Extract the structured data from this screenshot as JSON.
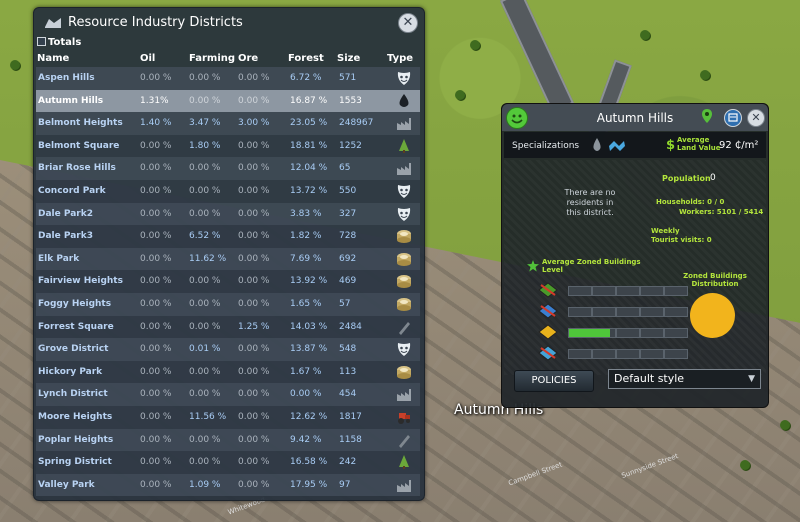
{
  "panel": {
    "title": "Resource Industry Districts",
    "totals_label": "Totals",
    "columns": [
      "Name",
      "Oil",
      "Farming",
      "Ore",
      "Forest",
      "Size",
      "Type"
    ],
    "rows": [
      {
        "name": "Aspen Hills",
        "oil": "0.00 %",
        "farming": "0.00 %",
        "ore": "0.00 %",
        "forest": "6.72 %",
        "size": "571",
        "type": "leisure-mask-icon",
        "hl": []
      },
      {
        "name": "Autumn Hills",
        "oil": "1.31%",
        "farming": "0.00 %",
        "ore": "0.00 %",
        "forest": "16.87 %",
        "size": "1553",
        "type": "oil-drop-icon",
        "hl": [
          "oil"
        ],
        "selected": true
      },
      {
        "name": "Belmont Heights",
        "oil": "1.40 %",
        "farming": "3.47 %",
        "ore": "3.00 %",
        "forest": "23.05 %",
        "size": "248967",
        "type": "industry-factory-icon",
        "hl": [
          "oil",
          "farming",
          "ore"
        ]
      },
      {
        "name": "Belmont Square",
        "oil": "0.00 %",
        "farming": "1.80 %",
        "ore": "0.00 %",
        "forest": "18.81 %",
        "size": "1252",
        "type": "forest-tree-icon",
        "hl": [
          "farming"
        ]
      },
      {
        "name": "Briar Rose Hills",
        "oil": "0.00 %",
        "farming": "0.00 %",
        "ore": "0.00 %",
        "forest": "12.04 %",
        "size": "65",
        "type": "industry-factory-icon",
        "hl": []
      },
      {
        "name": "Concord Park",
        "oil": "0.00 %",
        "farming": "0.00 %",
        "ore": "0.00 %",
        "forest": "13.72 %",
        "size": "550",
        "type": "leisure-mask-icon",
        "hl": []
      },
      {
        "name": "Dale Park2",
        "oil": "0.00 %",
        "farming": "0.00 %",
        "ore": "0.00 %",
        "forest": "3.83 %",
        "size": "327",
        "type": "leisure-mask-icon",
        "hl": []
      },
      {
        "name": "Dale Park3",
        "oil": "0.00 %",
        "farming": "6.52 %",
        "ore": "0.00 %",
        "forest": "1.82 %",
        "size": "728",
        "type": "hightech-chip-icon",
        "hl": [
          "farming"
        ]
      },
      {
        "name": "Elk Park",
        "oil": "0.00 %",
        "farming": "11.62 %",
        "ore": "0.00 %",
        "forest": "7.69 %",
        "size": "692",
        "type": "hightech-chip-icon",
        "hl": [
          "farming"
        ]
      },
      {
        "name": "Fairview Heights",
        "oil": "0.00 %",
        "farming": "0.00 %",
        "ore": "0.00 %",
        "forest": "13.92 %",
        "size": "469",
        "type": "hightech-chip-icon",
        "hl": []
      },
      {
        "name": "Foggy Heights",
        "oil": "0.00 %",
        "farming": "0.00 %",
        "ore": "0.00 %",
        "forest": "1.65 %",
        "size": "57",
        "type": "hightech-chip-icon",
        "hl": []
      },
      {
        "name": "Forrest Square",
        "oil": "0.00 %",
        "farming": "0.00 %",
        "ore": "1.25 %",
        "forest": "14.03 %",
        "size": "2484",
        "type": "office-pen-icon",
        "hl": [
          "ore"
        ]
      },
      {
        "name": "Grove District",
        "oil": "0.00 %",
        "farming": "0.01 %",
        "ore": "0.00 %",
        "forest": "13.87 %",
        "size": "548",
        "type": "leisure-mask-icon",
        "hl": [
          "farming"
        ]
      },
      {
        "name": "Hickory Park",
        "oil": "0.00 %",
        "farming": "0.00 %",
        "ore": "0.00 %",
        "forest": "1.67 %",
        "size": "113",
        "type": "hightech-chip-icon",
        "hl": []
      },
      {
        "name": "Lynch District",
        "oil": "0.00 %",
        "farming": "0.00 %",
        "ore": "0.00 %",
        "forest": "0.00 %",
        "size": "454",
        "type": "industry-factory-icon",
        "hl": []
      },
      {
        "name": "Moore Heights",
        "oil": "0.00 %",
        "farming": "11.56 %",
        "ore": "0.00 %",
        "forest": "12.62 %",
        "size": "1817",
        "type": "farming-tractor-icon",
        "hl": [
          "farming"
        ]
      },
      {
        "name": "Poplar Heights",
        "oil": "0.00 %",
        "farming": "0.00 %",
        "ore": "0.00 %",
        "forest": "9.42 %",
        "size": "1158",
        "type": "office-pen-icon",
        "hl": []
      },
      {
        "name": "Spring District",
        "oil": "0.00 %",
        "farming": "0.00 %",
        "ore": "0.00 %",
        "forest": "16.58 %",
        "size": "242",
        "type": "forest-tree-icon",
        "hl": []
      },
      {
        "name": "Valley Park",
        "oil": "0.00 %",
        "farming": "1.09 %",
        "ore": "0.00 %",
        "forest": "17.95 %",
        "size": "97",
        "type": "industry-factory-icon",
        "hl": [
          "farming"
        ]
      }
    ]
  },
  "info": {
    "title": "Autumn Hills",
    "specializations_label": "Specializations",
    "land_value_label_1": "Average",
    "land_value_label_2": "Land Value",
    "land_value": "92 ₵/m²",
    "no_residents": "There are no residents in this district.",
    "population_label": "Population",
    "population_value": "0",
    "households_label": "Households: 0 / 0",
    "workers_label": "Workers: 5101 / 5414",
    "weekly_label": "Weekly",
    "tourist_label": "Tourist visits: 0",
    "avg_level_label": "Average Zoned Buildings Level",
    "distribution_label": "Zoned Buildings Distribution",
    "zone_levels": [
      {
        "zone": "residential",
        "level": 0
      },
      {
        "zone": "commercial",
        "level": 0
      },
      {
        "zone": "industrial",
        "level": 0.35
      },
      {
        "zone": "office",
        "level": 0
      }
    ],
    "policies_label": "POLICIES",
    "style_value": "Default style",
    "colors": {
      "accent_green": "#b4e63c",
      "pie": "#f2b41c"
    }
  },
  "world": {
    "district_label": "Autumn Hills",
    "streets": [
      "Campbell Street",
      "Sunnyside Street",
      "Whitewood"
    ]
  }
}
